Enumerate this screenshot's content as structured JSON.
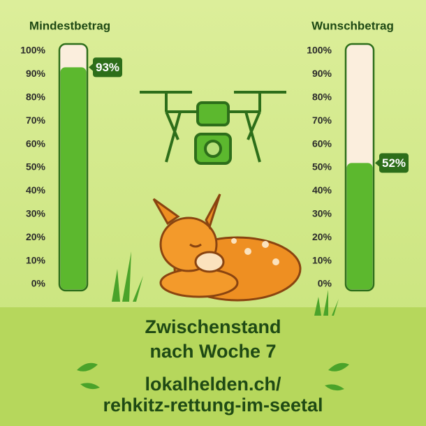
{
  "chart_data": [
    {
      "type": "progress",
      "title": "Mindestbetrag",
      "values": [
        93
      ],
      "value_labels": [
        "93%"
      ],
      "color": "#5cb82e",
      "track_color": "#fbeedd",
      "ylim": [
        0,
        100
      ],
      "yticks": [
        {
          "value": 0,
          "label": "0%"
        },
        {
          "value": 10,
          "label": "10%"
        },
        {
          "value": 20,
          "label": "20%"
        },
        {
          "value": 30,
          "label": "30%"
        },
        {
          "value": 40,
          "label": "40%"
        },
        {
          "value": 50,
          "label": "50%"
        },
        {
          "value": 60,
          "label": "60%"
        },
        {
          "value": 70,
          "label": "70%"
        },
        {
          "value": 80,
          "label": "80%"
        },
        {
          "value": 90,
          "label": "90%"
        },
        {
          "value": 100,
          "label": "100%"
        }
      ]
    },
    {
      "type": "progress",
      "title": "Wunschbetrag",
      "values": [
        52
      ],
      "value_labels": [
        "52%"
      ],
      "color": "#5cb82e",
      "track_color": "#fbeedd",
      "ylim": [
        0,
        100
      ],
      "yticks": [
        {
          "value": 0,
          "label": "0%"
        },
        {
          "value": 10,
          "label": "10%"
        },
        {
          "value": 20,
          "label": "20%"
        },
        {
          "value": 30,
          "label": "30%"
        },
        {
          "value": 40,
          "label": "40%"
        },
        {
          "value": 50,
          "label": "50%"
        },
        {
          "value": 60,
          "label": "60%"
        },
        {
          "value": 70,
          "label": "70%"
        },
        {
          "value": 80,
          "label": "80%"
        },
        {
          "value": 90,
          "label": "90%"
        },
        {
          "value": 100,
          "label": "100%"
        }
      ]
    }
  ],
  "footer": {
    "headline": [
      "Zwischenstand",
      "nach Woche 7"
    ],
    "link": [
      "lokalhelden.ch/",
      "rehkitz-rettung-im-seetal"
    ]
  }
}
